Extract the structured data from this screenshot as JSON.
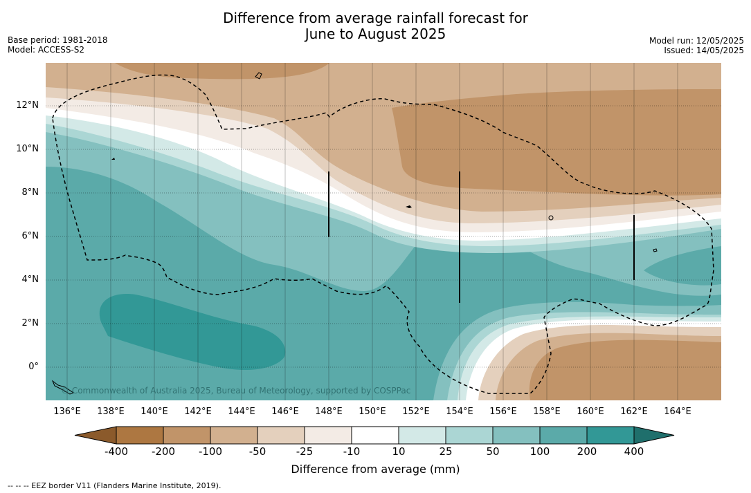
{
  "header": {
    "title_line1": "Difference from average rainfall forecast for",
    "title_line2": "June to August 2025",
    "base_period": "Base period: 1981-2018",
    "model": "Model: ACCESS-S2",
    "model_run": "Model run: 12/05/2025",
    "issued": "Issued: 14/05/2025"
  },
  "map": {
    "lat_ticks": [
      "12°N",
      "10°N",
      "8°N",
      "6°N",
      "4°N",
      "2°N",
      "0°"
    ],
    "lon_ticks": [
      "136°E",
      "138°E",
      "140°E",
      "142°E",
      "144°E",
      "146°E",
      "148°E",
      "150°E",
      "152°E",
      "154°E",
      "156°E",
      "158°E",
      "160°E",
      "162°E",
      "164°E"
    ],
    "copyright": "© Commonwealth of Australia 2025, Bureau of Meteorology, supported by COSPPac"
  },
  "colorbar": {
    "labels": [
      "-400",
      "-200",
      "-100",
      "-50",
      "-25",
      "-10",
      "10",
      "25",
      "50",
      "100",
      "200",
      "400"
    ],
    "colors": [
      "#8b5a2b",
      "#ad7741",
      "#c19469",
      "#d2b08f",
      "#e4d0bd",
      "#f3ebe5",
      "#ffffff",
      "#d3e9e7",
      "#abd6d4",
      "#84c0bf",
      "#5baaa9",
      "#329896",
      "#1f6f6c"
    ],
    "title": "Difference from average (mm)"
  },
  "legend": {
    "eez_note": "--  --  -- EEZ border V11 (Flanders Marine Institute, 2019)."
  }
}
